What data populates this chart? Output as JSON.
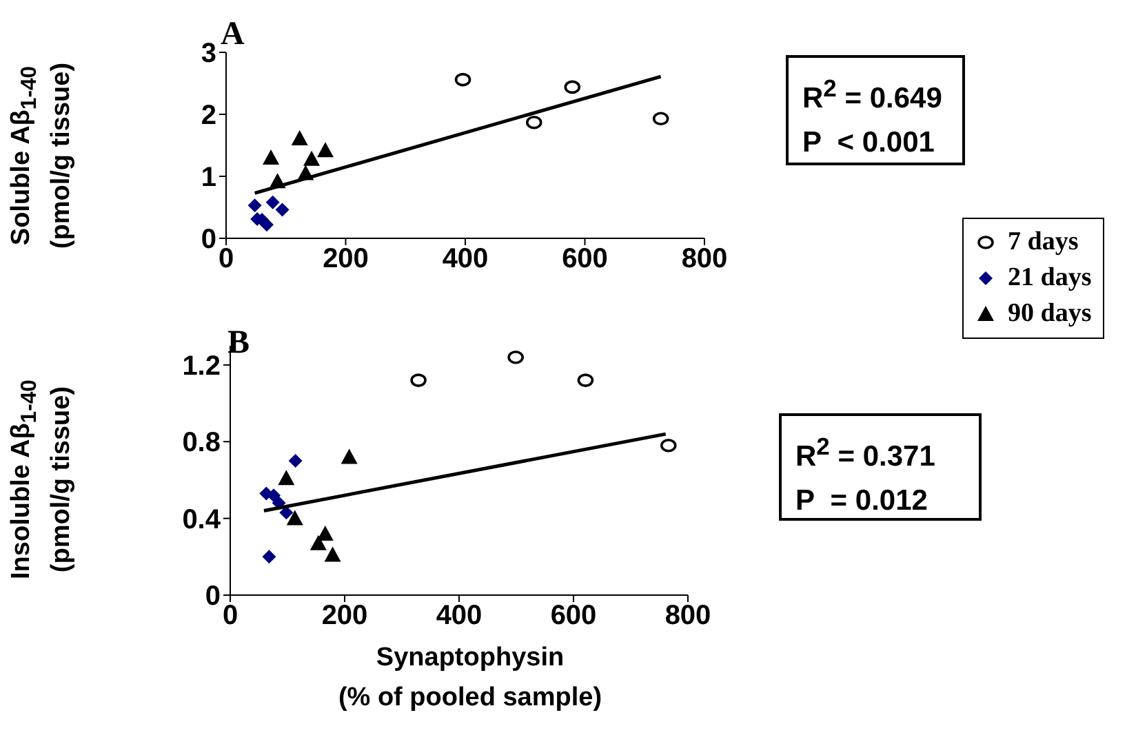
{
  "chart_data": [
    {
      "type": "scatter",
      "title": "A",
      "ylabel": "Soluble Aβ$_{1-40}$\n(pmol/g tissue)",
      "xlim": [
        0,
        800
      ],
      "xticks": [
        0,
        200,
        400,
        600,
        800
      ],
      "ylim": [
        0,
        3
      ],
      "yticks": [
        0,
        1,
        2,
        3
      ],
      "grid": false,
      "legend": "right",
      "annotations": [
        "R$^{2}$ = 0.649",
        "P  < 0.001"
      ],
      "series": [
        {
          "name": "7 days",
          "color": "#000000",
          "marker": "circle",
          "x": [
            396,
            515,
            579,
            727
          ],
          "values": [
            2.56,
            1.87,
            2.44,
            1.93
          ]
        },
        {
          "name": "21 days",
          "color": "#000080",
          "marker": "diamond",
          "x": [
            48,
            52,
            60,
            68,
            78,
            94
          ],
          "values": [
            0.53,
            0.31,
            0.3,
            0.22,
            0.58,
            0.46
          ]
        },
        {
          "name": "90 days",
          "color": "#000000",
          "marker": "triangle",
          "x": [
            75,
            86,
            123,
            133,
            143,
            166
          ],
          "values": [
            1.3,
            0.92,
            1.61,
            1.05,
            1.28,
            1.42
          ]
        },
        {
          "type": "line",
          "color": "#000000",
          "marker": "none",
          "x": [
            48,
            727
          ],
          "values": [
            0.73,
            2.61
          ]
        }
      ]
    },
    {
      "type": "scatter",
      "title": "B",
      "xlabel": "Synaptophysin\n(% of pooled sample)",
      "ylabel": "Insoluble Aβ$_{1-40}$\n(pmol/g tissue)",
      "xlim": [
        0,
        800
      ],
      "xticks": [
        0,
        200,
        400,
        600,
        800
      ],
      "ylim": [
        0,
        1.3
      ],
      "yticks": [
        {
          "value": 0,
          "label": "0"
        },
        {
          "value": 0.4,
          "label": "0.4"
        },
        {
          "value": 0.8,
          "label": "0.8"
        },
        {
          "value": 1.2,
          "label": "1.2"
        }
      ],
      "grid": false,
      "annotations": [
        "R$^{2}$ = 0.371",
        "P  = 0.012"
      ],
      "series": [
        {
          "color": "#000000",
          "marker": "circle",
          "x": [
            329,
            499,
            621,
            766
          ],
          "values": [
            1.12,
            1.24,
            1.12,
            0.78
          ]
        },
        {
          "color": "#000080",
          "marker": "diamond",
          "x": [
            63,
            76,
            85,
            98,
            114,
            68
          ],
          "values": [
            0.53,
            0.52,
            0.48,
            0.43,
            0.7,
            0.2
          ]
        },
        {
          "color": "#000000",
          "marker": "triangle",
          "x": [
            98,
            113,
            154,
            166,
            179,
            208
          ],
          "values": [
            0.61,
            0.4,
            0.27,
            0.32,
            0.21,
            0.72
          ]
        },
        {
          "type": "line",
          "color": "#000000",
          "marker": "none",
          "x": [
            59,
            761
          ],
          "values": [
            0.44,
            0.84
          ]
        }
      ]
    }
  ]
}
